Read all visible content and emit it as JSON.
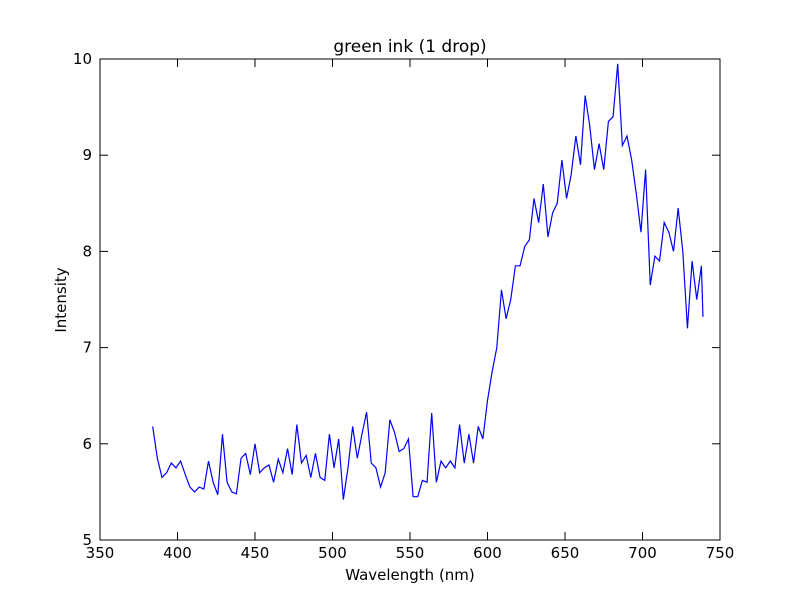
{
  "chart_data": {
    "type": "line",
    "title": "green ink (1 drop)",
    "x_label": "Wavelength (nm)",
    "y_label": "Intensity",
    "xlim": [
      350,
      750
    ],
    "xticks": [
      350,
      400,
      450,
      500,
      550,
      600,
      650,
      700,
      750
    ],
    "ylim": [
      5,
      10
    ],
    "yticks": [
      5,
      6,
      7,
      8,
      9,
      10
    ],
    "x": [
      384,
      387,
      390,
      393,
      396,
      399,
      402,
      405,
      408,
      411,
      414,
      417,
      420,
      423,
      426,
      429,
      432,
      435,
      438,
      441,
      444,
      447,
      450,
      453,
      456,
      459,
      462,
      465,
      468,
      471,
      474,
      477,
      480,
      483,
      486,
      489,
      492,
      495,
      498,
      501,
      504,
      507,
      510,
      513,
      516,
      519,
      522,
      525,
      528,
      531,
      534,
      537,
      540,
      543,
      546,
      549,
      552,
      555,
      558,
      561,
      564,
      567,
      570,
      573,
      576,
      579,
      582,
      585,
      588,
      591,
      594,
      597,
      600,
      603,
      606,
      609,
      612,
      615,
      618,
      621,
      624,
      627,
      630,
      633,
      636,
      639,
      642,
      645,
      648,
      651,
      654,
      657,
      660,
      663,
      666,
      669,
      672,
      675,
      678,
      681,
      684,
      687,
      690,
      693,
      696,
      699,
      702,
      705,
      708,
      711,
      714,
      717,
      720,
      723,
      726,
      729,
      732,
      735,
      738,
      739
    ],
    "series": [
      {
        "color": "#0000ff",
        "values": [
          6.18,
          5.85,
          5.65,
          5.7,
          5.8,
          5.75,
          5.82,
          5.68,
          5.55,
          5.5,
          5.55,
          5.53,
          5.82,
          5.6,
          5.47,
          6.1,
          5.6,
          5.5,
          5.48,
          5.85,
          5.9,
          5.68,
          6.0,
          5.7,
          5.75,
          5.78,
          5.6,
          5.84,
          5.7,
          5.95,
          5.68,
          6.2,
          5.8,
          5.88,
          5.65,
          5.9,
          5.65,
          5.62,
          6.1,
          5.75,
          6.05,
          5.42,
          5.75,
          6.18,
          5.85,
          6.1,
          6.33,
          5.8,
          5.75,
          5.55,
          5.7,
          6.25,
          6.12,
          5.92,
          5.95,
          6.05,
          5.45,
          5.45,
          5.62,
          5.6,
          6.32,
          5.6,
          5.82,
          5.75,
          5.82,
          5.75,
          6.2,
          5.8,
          6.1,
          5.8,
          6.18,
          6.05,
          6.45,
          6.75,
          7.0,
          7.6,
          7.3,
          7.5,
          7.85,
          7.85,
          8.05,
          8.12,
          8.55,
          8.3,
          8.7,
          8.15,
          8.4,
          8.5,
          8.95,
          8.55,
          8.8,
          9.2,
          8.9,
          9.62,
          9.3,
          8.85,
          9.12,
          8.85,
          9.35,
          9.4,
          9.95,
          9.1,
          9.2,
          8.95,
          8.6,
          8.2,
          8.85,
          7.65,
          7.95,
          7.9,
          8.3,
          8.2,
          8.0,
          8.45,
          8.0,
          7.2,
          7.9,
          7.5,
          7.85,
          7.32
        ]
      }
    ]
  }
}
